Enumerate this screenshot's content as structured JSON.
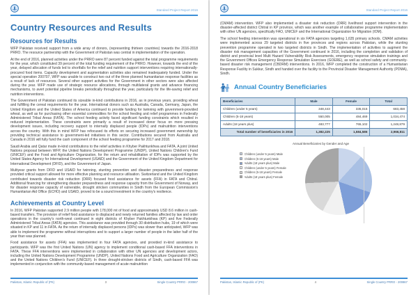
{
  "report": {
    "header_title": "Standard Project Report 2016",
    "footer_left": "Pakistan, Islamic Republic of (PK)",
    "footer_right": "Single Country PRRO - 200867"
  },
  "colors": {
    "accent_blue": "#2e74b5",
    "rule_blue": "#3b8ed6",
    "table_border": "#5a87b0",
    "table_header_bg": "#d3e0ec"
  },
  "left_page": {
    "page_number": "3",
    "title": "Country Resources and Results",
    "resources_heading": "Resources for Results",
    "resources_paragraphs": [
      "WFP Pakistan received support from a wide array of donors, (representing thirteen countries) towards the 2016-2018 PRRO. The resource partnership with the Government of Pakistan was central in implementation of the operation.",
      "At the end of 2016, planned activities under the PRRO were 87 percent funded against the total programme requirements for the year, which constituted 39 percent of the total funding requirement of the PRRO. However, towards the end of the year, delayed allocation of funds led to shortfalls for the relief and nutrition support interventions requiring internationally-procured food items. Capacity development and augmentation activities also remained inadequately funded. Under the special operation 200707, WFP was unable to construct two out of the three planned humanitarian response facilities as a result of lack of resources. Several other support activities for the Government in other sectors were also affected during the year. WFP made use of strategic resource allocations, through multilateral grants and advance financing mechanisms, to avert potential pipeline breaks periodically throughout the year, particularly for the life-saving relief and nutrition interventions.",
      "The Government of Pakistan continued its sizeable in-kind contributions in 2016, as in previous years, providing wheat and fulfilling the cereal requirements for the year. International donors such as Australia, Canada, Germany, Japan, the United Kingdom and the United States of America continued to provide funding for twinning with government-provided wheat, as well as for purchasing other essential commodities for the school feeding and relief programmes in Federally Administered Tribal Areas (FATA). The school feeding activity faced significant funding constraints which resulted in reduced implementation. These constraints were primarily a result of increased donor focus on more pressing development issues, including recovery support to internally displaced people (IDPs) and malnutrition interventions across the country. With this in mind WFP has refocused its efforts on securing increased government ownership by providing technical assistance to government-led initiatives in this sector. Contributions secured from Australia and Canada in 2016 will fully fund the cash component of the school feeding programme for 2017 and 2018.",
      "Saudi Arabia and Qatar made in-kind contributions to the relief activities in Khyber Pakhtunkhwa and FATA. A joint United Nations proposal between WFP, the United Nations Development Programme (UNDP), United Nations Children's Fund (UNICEF) and the Food and Agriculture Organization, for the return and rehabilitation of IDPs was supported by the United States Agency for International Development (USAID) and the Government of the United Kingdom Department for International Development (DFID), and the Government of Japan.",
      "Multiyear grants from DFID and USAID for twinning, stunting prevention and disaster preparedness and response provided critical support allowed for more effective planning and resource utilisation. Switzerland and the United Kingdom contributed towards disaster risk reduction (DRR) focused food assistance for assets (FFA) in FATA and Chitral. Additional financing for strengthening disaster preparedness and response capacity from the Government of Norway, and for disaster response capacity of vulnerable, drought stricken communities in Sindh from the European Commission's Humanitarian Aid Office (ECHO) and USAID, proved to be a sound investment in the country's resilience."
    ],
    "achievements_heading": "Achievements at Country Level",
    "achievements_paragraphs": [
      "In 2016, WFP Pakistan supported 2.9 million people with 178,000 mt of food and approximately USD 8.6 million in cash-based transfers. The provision of relief food assistance to displaced and newly returned families affected by law and order operations in the country's north-west continued in eight districts of Khyber Pakhtunkhwa (KP) and five Federally Administered Tribal Areas (FATA) agencies. This assistance was provided through 30 distribution hubs, 19 of which were situated in KP and 11 in FATA. As the return of internally displaced persons (IDPs) was slower than anticipated, WFP was able to implement the programme without interruptions and to support a larger number of people in the latter half of the year than was planned.",
      "Food assistance for assets (FFA) was implemented in four FATA agencies, and provided in-kind assistance to participants. WFP was the first United Nations (UN) agency to implement conditional cash-based FFA interventions in FATA. These FFA interventions were implemented in collaboration with other UN agencies and development actors, including the United Nations Development Programme (UNDP), United Nations Food and Agriculture Organization (FAO) and the United Nations Children's Fund (UNICEF). In three drought-stricken districts of Sindh, cash-based FFA was implemented in conjunction with the community-based management of acute malnutrition"
    ]
  },
  "right_page": {
    "page_number": "4",
    "paragraphs": [
      "(CMAM) intervention. WFP also implemented a disaster risk reduction (DRR) livelihood support intervention in the disaster-affected district Chitral in KP province, which was another example of collaborative programme implementation with other UN agencies, specifically FAO, UNICEF and the International Organization for Migration (IOM).",
      "The school feeding intervention was operational in six FATA agencies targeting 1,635 primary schools. CMAM activities were implemented across 29 targeted districts in five provinces and regions across Pakistan, while the stunting prevention programme operated in two targeted districts in Sindh. The implementation of activities to augment the disaster risk management capacities of the Government continued in 2016, including the completion and validation of district and provincial level Multi Hazard Vulnerability Risk Assessments, emergency response simulation trainings and the Government Offices Emergency Response Simulation Exercises (GOERE), as well as school safety and community-based disaster risk management (CBDRM) interventions. In 2016, WFP completed the construction of a Humanitarian Response Facility in Sukkur, Sindh and handed over the facility to the Provincial Disaster Management Authority (PDMA), Sindh."
    ],
    "beneficiaries_heading": "Annual Country Beneficiaries",
    "table": {
      "columns": [
        "Beneficiaries",
        "Male",
        "Female",
        "Total"
      ],
      "rows": [
        {
          "label": "Children (under 5 years)",
          "male": "348,443",
          "female": "335,015",
          "total": "683,458"
        },
        {
          "label": "Children (5-18 years)",
          "male": "550,005",
          "female": "484,469",
          "total": "1,034,474"
        },
        {
          "label": "Adults (18 years plus)",
          "male": "483,777",
          "female": "765,102",
          "total": "1,248,879"
        }
      ],
      "total_row": {
        "label": "Total number of beneficiaries in 2016",
        "male": "1,382,225",
        "female": "1,584,586",
        "total": "2,966,811"
      }
    },
    "chart_data": {
      "type": "pie",
      "title": "Annual Beneficiaries by Gender and Age",
      "labels": [
        "Children (under 5 years) Male",
        "Children (5-18 years) Male",
        "Adults (18 years plus) Male",
        "Children (under 5 years) Female",
        "Children (5-18 years) Female",
        "Adults (18 years plus) Female"
      ],
      "values": [
        348443,
        550005,
        483777,
        335015,
        484469,
        765102
      ],
      "colors": [
        "#c9d6ec",
        "#a9c0e4",
        "#7e9ed8",
        "#f2f2f2",
        "#d9d9d9",
        "#a6a6a6"
      ],
      "legend_position": "left",
      "total": 2966811
    }
  }
}
